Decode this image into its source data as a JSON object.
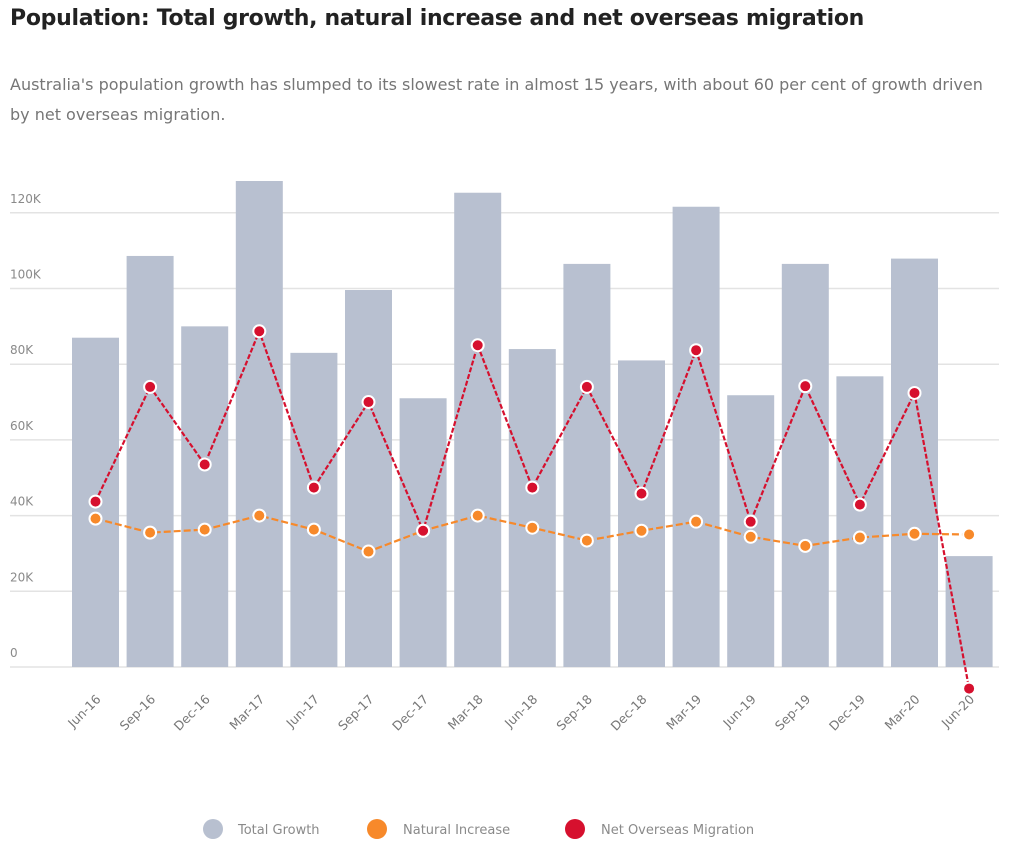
{
  "header": {
    "title": "Population: Total growth, natural increase and net overseas migration",
    "subtitle": "Australia's population growth has slumped to its slowest rate in almost 15 years, with about 60 per cent of growth driven by net overseas migration."
  },
  "colors": {
    "total_growth": "#b8c0d0",
    "natural_increase": "#f7892a",
    "net_overseas_migration": "#d6102e",
    "gridline": "#e3e3e3"
  },
  "chart_data": {
    "type": "bar",
    "title": "Population: Total growth, natural increase and net overseas migration",
    "xlabel": "",
    "ylabel": "",
    "ylim": [
      -8000,
      130000
    ],
    "yticks": [
      0,
      20000,
      40000,
      60000,
      80000,
      100000,
      120000
    ],
    "ytick_labels": [
      "0",
      "20K",
      "40K",
      "60K",
      "80K",
      "100K",
      "120K"
    ],
    "grid": true,
    "legend_position": "bottom-center",
    "categories": [
      "Jun-16",
      "Sep-16",
      "Dec-16",
      "Mar-17",
      "Jun-17",
      "Sep-17",
      "Dec-17",
      "Mar-18",
      "Jun-18",
      "Sep-18",
      "Dec-18",
      "Mar-19",
      "Jun-19",
      "Sep-19",
      "Dec-19",
      "Mar-20",
      "Jun-20"
    ],
    "series": [
      {
        "name": "Total Growth",
        "type": "bar",
        "values": [
          87000,
          108600,
          90000,
          128400,
          83000,
          99600,
          71000,
          125300,
          84000,
          106500,
          81000,
          121600,
          71800,
          106500,
          76800,
          107900,
          29300
        ]
      },
      {
        "name": "Natural Increase",
        "type": "line",
        "values": [
          39200,
          35500,
          36300,
          40000,
          36300,
          30500,
          36000,
          40000,
          36800,
          33400,
          36000,
          38400,
          34400,
          32000,
          34200,
          35200,
          35000
        ]
      },
      {
        "name": "Net Overseas Migration",
        "type": "line",
        "values": [
          43700,
          74000,
          53500,
          88700,
          47400,
          70000,
          36000,
          85000,
          47400,
          74000,
          45800,
          83700,
          38400,
          74200,
          42900,
          72400,
          -5700
        ]
      }
    ]
  }
}
